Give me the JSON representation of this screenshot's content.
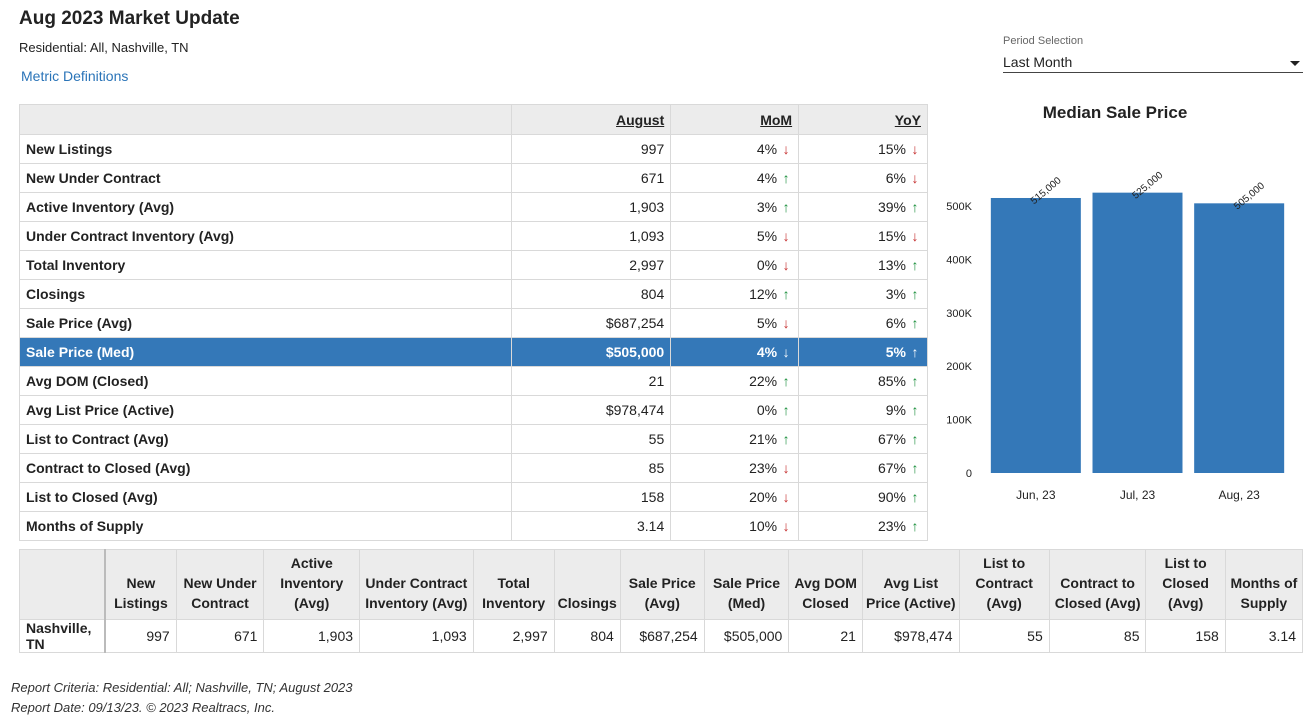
{
  "header": {
    "title": "Aug 2023 Market Update",
    "subtitle": "Residential: All, Nashville, TN",
    "metric_link": "Metric Definitions"
  },
  "period": {
    "label": "Period Selection",
    "value": "Last Month"
  },
  "table": {
    "columns": [
      "August",
      "MoM",
      "YoY"
    ],
    "rows": [
      {
        "label": "New Listings",
        "value": "997",
        "mom": "4%",
        "mom_dir": "down",
        "yoy": "15%",
        "yoy_dir": "down"
      },
      {
        "label": "New Under Contract",
        "value": "671",
        "mom": "4%",
        "mom_dir": "up",
        "yoy": "6%",
        "yoy_dir": "down"
      },
      {
        "label": "Active Inventory (Avg)",
        "value": "1,903",
        "mom": "3%",
        "mom_dir": "up",
        "yoy": "39%",
        "yoy_dir": "up"
      },
      {
        "label": "Under Contract Inventory (Avg)",
        "value": "1,093",
        "mom": "5%",
        "mom_dir": "down",
        "yoy": "15%",
        "yoy_dir": "down"
      },
      {
        "label": "Total Inventory",
        "value": "2,997",
        "mom": "0%",
        "mom_dir": "down",
        "yoy": "13%",
        "yoy_dir": "up"
      },
      {
        "label": "Closings",
        "value": "804",
        "mom": "12%",
        "mom_dir": "up",
        "yoy": "3%",
        "yoy_dir": "up"
      },
      {
        "label": "Sale Price (Avg)",
        "value": "$687,254",
        "mom": "5%",
        "mom_dir": "down",
        "yoy": "6%",
        "yoy_dir": "up"
      },
      {
        "label": "Sale Price (Med)",
        "value": "$505,000",
        "mom": "4%",
        "mom_dir": "down",
        "yoy": "5%",
        "yoy_dir": "up",
        "selected": true
      },
      {
        "label": "Avg DOM (Closed)",
        "value": "21",
        "mom": "22%",
        "mom_dir": "up",
        "yoy": "85%",
        "yoy_dir": "up"
      },
      {
        "label": "Avg List Price (Active)",
        "value": "$978,474",
        "mom": "0%",
        "mom_dir": "up",
        "yoy": "9%",
        "yoy_dir": "up"
      },
      {
        "label": "List to Contract (Avg)",
        "value": "55",
        "mom": "21%",
        "mom_dir": "up",
        "yoy": "67%",
        "yoy_dir": "up"
      },
      {
        "label": "Contract to Closed (Avg)",
        "value": "85",
        "mom": "23%",
        "mom_dir": "down",
        "yoy": "67%",
        "yoy_dir": "up"
      },
      {
        "label": "List to Closed (Avg)",
        "value": "158",
        "mom": "20%",
        "mom_dir": "down",
        "yoy": "90%",
        "yoy_dir": "up"
      },
      {
        "label": "Months of Supply",
        "value": "3.14",
        "mom": "10%",
        "mom_dir": "down",
        "yoy": "23%",
        "yoy_dir": "up"
      }
    ]
  },
  "chart_data": {
    "type": "bar",
    "title": "Median Sale Price",
    "categories": [
      "Jun, 23",
      "Jul, 23",
      "Aug, 23"
    ],
    "values": [
      515000,
      525000,
      505000
    ],
    "data_labels": [
      "515,000",
      "525,000",
      "505,000"
    ],
    "ylim": [
      0,
      500000
    ],
    "yticks": [
      0,
      100000,
      200000,
      300000,
      400000,
      500000
    ],
    "ytick_labels": [
      "0",
      "100K",
      "200K",
      "300K",
      "400K",
      "500K"
    ],
    "bar_color": "#3478b8",
    "grid": false,
    "legend": "none"
  },
  "summary": {
    "headers": [
      "New Listings",
      "New Under Contract",
      "Active Inventory (Avg)",
      "Under Contract Inventory (Avg)",
      "Total Inventory",
      "Closings",
      "Sale Price (Avg)",
      "Sale Price (Med)",
      "Avg DOM Closed",
      "Avg List Price (Active)",
      "List to Contract (Avg)",
      "Contract to Closed (Avg)",
      "List to Closed (Avg)",
      "Months of Supply"
    ],
    "row_label": "Nashville, TN",
    "values": [
      "997",
      "671",
      "1,903",
      "1,093",
      "2,997",
      "804",
      "$687,254",
      "$505,000",
      "21",
      "$978,474",
      "55",
      "85",
      "158",
      "3.14"
    ]
  },
  "footer": {
    "criteria": "Report Criteria: Residential: All; Nashville, TN; August 2023",
    "date": "Report Date: 09/13/23. © 2023 Realtracs, Inc."
  },
  "colors": {
    "accent": "#3478b8",
    "link": "#2a74b8",
    "up": "#1a8f3c",
    "down": "#c42b2b"
  }
}
